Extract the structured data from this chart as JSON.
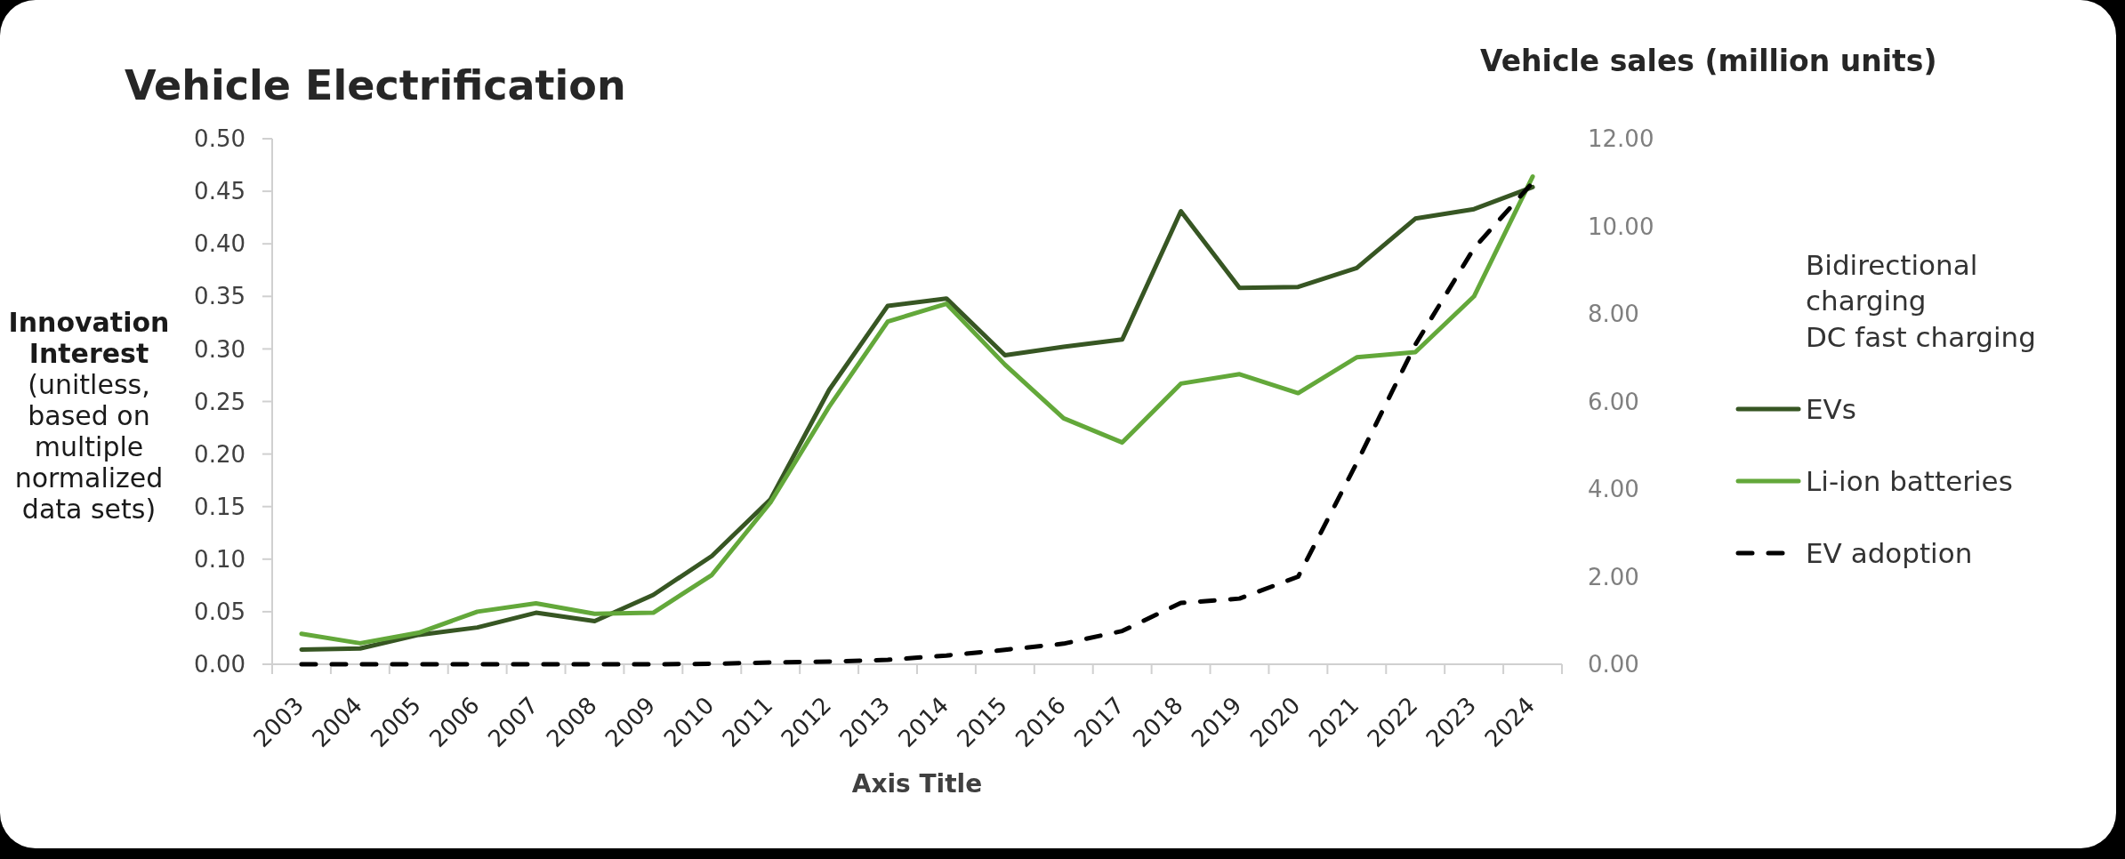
{
  "chart_data": {
    "type": "line",
    "title": "Vehicle Electrification",
    "xlabel": "Axis Title",
    "ylabel": "Innovation Interest (unitless, based on multiple normalized data sets)",
    "y2label": "Vehicle sales (million units)",
    "categories": [
      "2003",
      "2004",
      "2005",
      "2006",
      "2007",
      "2008",
      "2009",
      "2010",
      "2011",
      "2012",
      "2013",
      "2014",
      "2015",
      "2016",
      "2017",
      "2018",
      "2019",
      "2020",
      "2021",
      "2022",
      "2023",
      "2024"
    ],
    "ylim": [
      0,
      0.5
    ],
    "yticks": [
      {
        "value": 0,
        "label": "0.00"
      },
      {
        "value": 0.05,
        "label": "0.05"
      },
      {
        "value": 0.1,
        "label": "0.10"
      },
      {
        "value": 0.15,
        "label": "0.15"
      },
      {
        "value": 0.2,
        "label": "0.20"
      },
      {
        "value": 0.25,
        "label": "0.25"
      },
      {
        "value": 0.3,
        "label": "0.30"
      },
      {
        "value": 0.35,
        "label": "0.35"
      },
      {
        "value": 0.4,
        "label": "0.40"
      },
      {
        "value": 0.45,
        "label": "0.45"
      },
      {
        "value": 0.5,
        "label": "0.50"
      }
    ],
    "y2lim": [
      0,
      12
    ],
    "y2ticks": [
      {
        "value": 0,
        "label": "0.00"
      },
      {
        "value": 2,
        "label": "2.00"
      },
      {
        "value": 4,
        "label": "4.00"
      },
      {
        "value": 6,
        "label": "6.00"
      },
      {
        "value": 8,
        "label": "8.00"
      },
      {
        "value": 10,
        "label": "10.00"
      },
      {
        "value": 12,
        "label": "12.00"
      }
    ],
    "legend": "right",
    "series": [
      {
        "name": "Bidirectional charging",
        "values": [
          null,
          null,
          null,
          null,
          null,
          null,
          null,
          null,
          null,
          null,
          null,
          null,
          null,
          null,
          null,
          null,
          null,
          null,
          null,
          null,
          null,
          null
        ]
      },
      {
        "name": "DC fast charging",
        "values": [
          null,
          null,
          null,
          null,
          null,
          null,
          null,
          null,
          null,
          null,
          null,
          null,
          null,
          null,
          null,
          null,
          null,
          null,
          null,
          null,
          null,
          null
        ]
      },
      {
        "name": "EVs",
        "color": "#375623",
        "values": [
          0.014,
          0.015,
          0.028,
          0.035,
          0.049,
          0.041,
          0.066,
          0.103,
          0.157,
          0.261,
          0.341,
          0.348,
          0.294,
          0.302,
          0.309,
          0.431,
          0.358,
          0.359,
          0.377,
          0.424,
          0.433,
          0.454
        ]
      },
      {
        "name": "Li-ion batteries",
        "color": "#63a83a",
        "values": [
          0.029,
          0.02,
          0.03,
          0.05,
          0.058,
          0.048,
          0.049,
          0.085,
          0.154,
          0.245,
          0.326,
          0.343,
          0.285,
          0.234,
          0.211,
          0.267,
          0.276,
          0.258,
          0.292,
          0.297,
          0.35,
          0.464
        ]
      },
      {
        "name": "EV adoption",
        "color": "#000000",
        "axis": "y2",
        "line_style": "dashed",
        "values": [
          0,
          0,
          0,
          0,
          0,
          0,
          0,
          0.01,
          0.04,
          0.06,
          0.1,
          0.2,
          0.33,
          0.47,
          0.76,
          1.4,
          1.5,
          2.0,
          4.6,
          7.3,
          9.5,
          11.0
        ]
      }
    ]
  }
}
